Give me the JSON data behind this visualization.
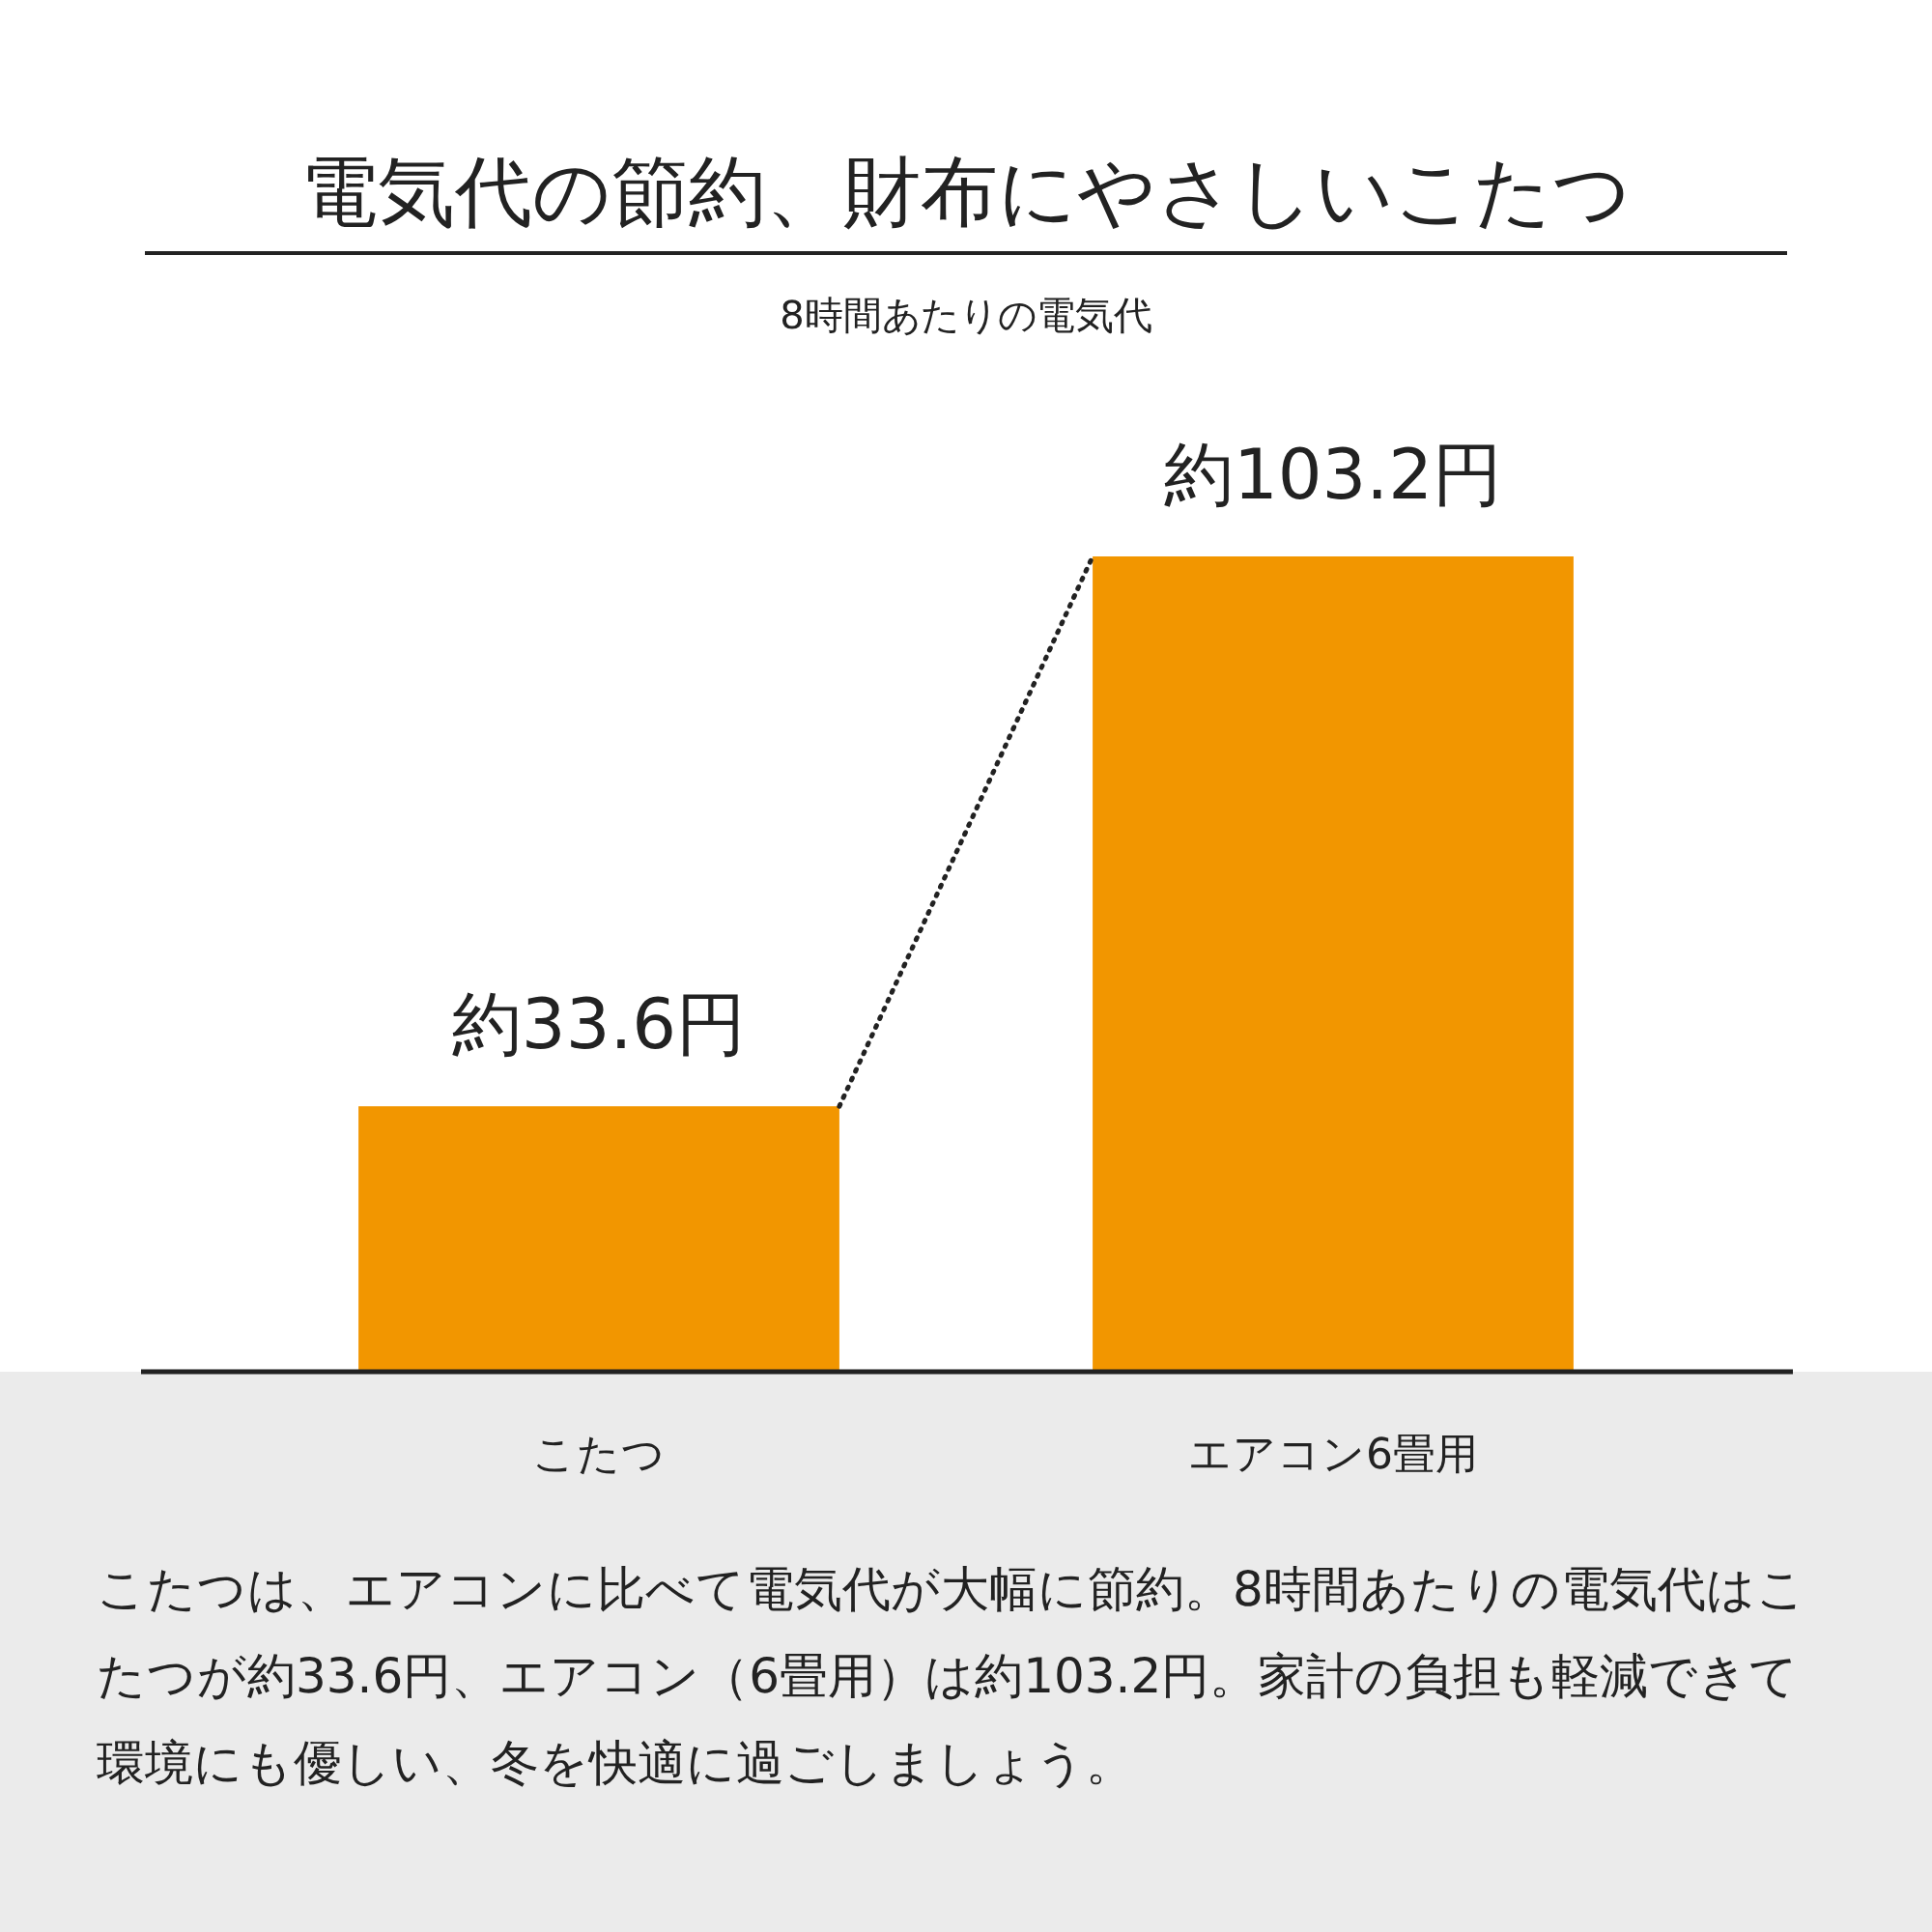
{
  "chart_data": {
    "type": "bar",
    "title": "電気代の節約、財布にやさしいこたつ",
    "subtitle": "8時間あたりの電気代",
    "categories": [
      "こたつ",
      "エアコン6畳用"
    ],
    "values": [
      33.6,
      103.2
    ],
    "color": "#f29600",
    "value_labels": [
      "約33.6円",
      "約103.2円"
    ],
    "annotations": [
      "こたつは、エアコンに比べて電気代が大幅に節約。8時間あたりの電気代はこたつが約33.6円、エアコン（6畳用）は約103.2円。家計の負担も軽減できて環境にも優しい、冬を快適に過ごしましょう。"
    ]
  }
}
